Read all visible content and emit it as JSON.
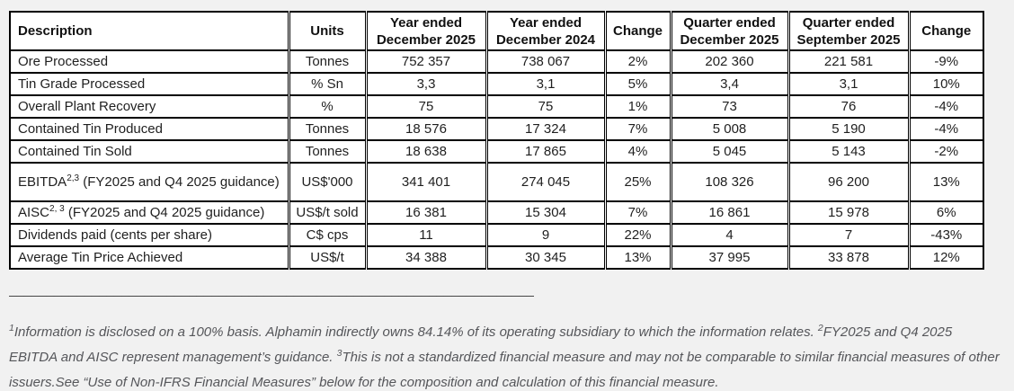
{
  "colors": {
    "page_bg": "#f1f1f1",
    "table_bg": "#ffffff",
    "border": "#000000",
    "table_text": "#1f1f1f",
    "footnote_text": "#55565a"
  },
  "table": {
    "headers": [
      {
        "id": "description",
        "lines": [
          "Description"
        ]
      },
      {
        "id": "units",
        "lines": [
          "Units"
        ]
      },
      {
        "id": "year-ended-december-2025",
        "lines": [
          "Year ended",
          "December 2025"
        ]
      },
      {
        "id": "year-ended-december-2024",
        "lines": [
          "Year ended",
          "December 2024"
        ]
      },
      {
        "id": "change-yoy",
        "lines": [
          "Change"
        ]
      },
      {
        "id": "quarter-ended-december-2025",
        "lines": [
          "Quarter ended",
          "December 2025"
        ]
      },
      {
        "id": "quarter-ended-september-2025",
        "lines": [
          "Quarter ended",
          "September 2025"
        ]
      },
      {
        "id": "change-qoq",
        "lines": [
          "Change"
        ]
      }
    ],
    "rows": [
      {
        "description": {
          "text": "Ore Processed",
          "sup": "",
          "rest": ""
        },
        "unit": "Tonnes",
        "values": [
          "752 357",
          "738 067",
          "2%",
          "202 360",
          "221 581",
          "-9%"
        ],
        "tall": false
      },
      {
        "description": {
          "text": "Tin Grade Processed",
          "sup": "",
          "rest": ""
        },
        "unit": "% Sn",
        "values": [
          "3,3",
          "3,1",
          "5%",
          "3,4",
          "3,1",
          "10%"
        ],
        "tall": false
      },
      {
        "description": {
          "text": "Overall Plant Recovery",
          "sup": "",
          "rest": ""
        },
        "unit": "%",
        "values": [
          "75",
          "75",
          "1%",
          "73",
          "76",
          "-4%"
        ],
        "tall": false
      },
      {
        "description": {
          "text": "Contained Tin Produced",
          "sup": "",
          "rest": ""
        },
        "unit": "Tonnes",
        "values": [
          "18 576",
          "17 324",
          "7%",
          "5 008",
          "5 190",
          "-4%"
        ],
        "tall": false
      },
      {
        "description": {
          "text": "Contained Tin Sold",
          "sup": "",
          "rest": ""
        },
        "unit": "Tonnes",
        "values": [
          "18 638",
          "17 865",
          "4%",
          "5 045",
          "5 143",
          "-2%"
        ],
        "tall": false
      },
      {
        "description": {
          "text": "EBITDA",
          "sup": "2,3",
          "rest": " (FY2025 and Q4 2025 guidance)"
        },
        "unit": "US$'000",
        "values": [
          "341 401",
          "274 045",
          "25%",
          "108 326",
          "96 200",
          "13%"
        ],
        "tall": true
      },
      {
        "description": {
          "text": "AISC",
          "sup": "2, 3",
          "rest": " (FY2025 and Q4 2025 guidance)"
        },
        "unit": "US$/t sold",
        "values": [
          "16 381",
          "15 304",
          "7%",
          "16 861",
          "15 978",
          "6%"
        ],
        "tall": false
      },
      {
        "description": {
          "text": "Dividends paid (cents per share)",
          "sup": "",
          "rest": ""
        },
        "unit": "C$ cps",
        "values": [
          "11",
          "9",
          "22%",
          "4",
          "7",
          "-43%"
        ],
        "tall": false
      },
      {
        "description": {
          "text": "Average Tin Price Achieved",
          "sup": "",
          "rest": ""
        },
        "unit": "US$/t",
        "values": [
          "34 388",
          "30 345",
          "13%",
          "37 995",
          "33 878",
          "12%"
        ],
        "tall": false
      }
    ]
  },
  "separator": "________________________________________________________________________________",
  "footnote": {
    "segments": [
      {
        "sup": "1",
        "text": "Information is disclosed on a 100% basis. Alphamin indirectly owns 84.14% of its operating subsidiary to which the information relates. "
      },
      {
        "sup": "2",
        "text": "FY2025 and Q4 2025 EBITDA and AISC represent management’s guidance. "
      },
      {
        "sup": "3",
        "text": "This is not a standardized financial measure and may not be comparable to similar financial measures of other issuers.See “Use of Non-IFRS Financial Measures” below for the composition and calculation of this financial measure."
      }
    ]
  }
}
